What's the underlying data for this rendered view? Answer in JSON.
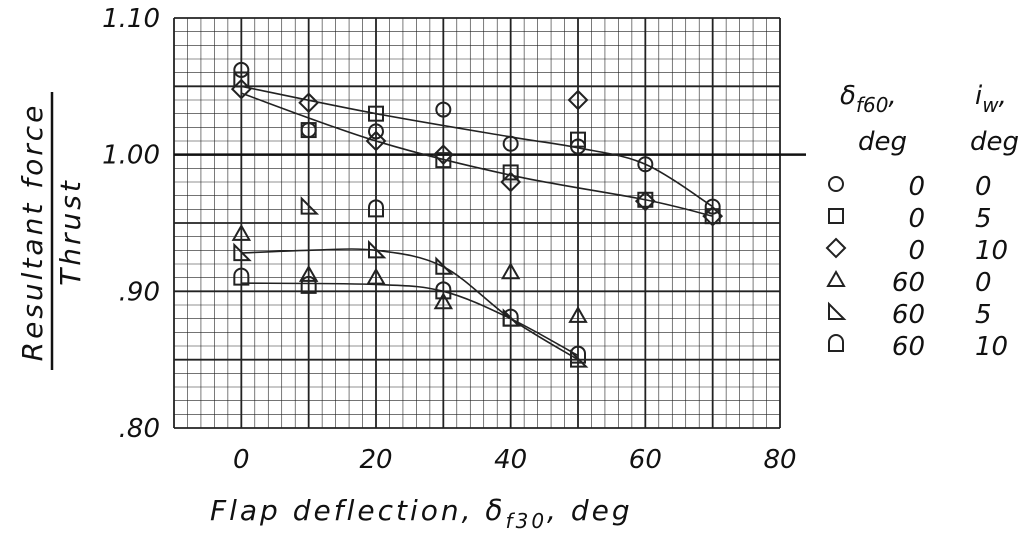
{
  "chart_data": {
    "type": "scatter",
    "xlabel": "Flap deflection, δ",
    "xlabel_sub": "f30",
    "xlabel_suffix": ", deg",
    "ylabel_numerator": "Resultant force",
    "ylabel_denominator": "Thrust",
    "xlim": [
      -10,
      80
    ],
    "ylim": [
      0.8,
      1.1
    ],
    "x_ticks": [
      0,
      20,
      40,
      60,
      80
    ],
    "x_tick_labels": [
      "0",
      "20",
      "40",
      "60",
      "80"
    ],
    "y_ticks": [
      0.8,
      0.9,
      1.0,
      1.1
    ],
    "y_tick_labels": [
      ".80",
      ".90",
      "1.00",
      "1.10"
    ],
    "grid": true,
    "reference_line_y": 1.0,
    "legend": {
      "placement": "right",
      "header_col1_main": "δ",
      "header_col1_sub": "f60",
      "header_col1_unit": "deg",
      "header_col2_main": "i",
      "header_col2_sub": "w",
      "header_col2_unit": "deg",
      "entries": [
        {
          "symbol": "circle",
          "col1": "0",
          "col2": "0"
        },
        {
          "symbol": "square",
          "col1": "0",
          "col2": "5"
        },
        {
          "symbol": "diamond",
          "col1": "0",
          "col2": "10"
        },
        {
          "symbol": "triangle",
          "col1": "60",
          "col2": "0"
        },
        {
          "symbol": "right-triangle",
          "col1": "60",
          "col2": "5"
        },
        {
          "symbol": "d-shape",
          "col1": "60",
          "col2": "10"
        }
      ]
    },
    "series": [
      {
        "symbol": "circle",
        "points": [
          [
            0,
            1.062
          ],
          [
            10,
            1.018
          ],
          [
            20,
            1.017
          ],
          [
            30,
            1.033
          ],
          [
            40,
            1.008
          ],
          [
            50,
            1.006
          ],
          [
            60,
            0.993
          ],
          [
            70,
            0.962
          ]
        ]
      },
      {
        "symbol": "square",
        "points": [
          [
            0,
            1.055
          ],
          [
            10,
            1.018
          ],
          [
            20,
            1.03
          ],
          [
            30,
            0.996
          ],
          [
            40,
            0.987
          ],
          [
            50,
            1.011
          ],
          [
            60,
            0.967
          ],
          [
            70,
            0.955
          ]
        ]
      },
      {
        "symbol": "diamond",
        "points": [
          [
            0,
            1.048
          ],
          [
            10,
            1.038
          ],
          [
            20,
            1.01
          ],
          [
            30,
            1.0
          ],
          [
            40,
            0.98
          ],
          [
            50,
            1.04
          ],
          [
            60,
            0.966
          ],
          [
            70,
            0.955
          ]
        ]
      },
      {
        "symbol": "triangle",
        "points": [
          [
            0,
            0.942
          ],
          [
            10,
            0.912
          ],
          [
            20,
            0.91
          ],
          [
            30,
            0.892
          ],
          [
            40,
            0.914
          ],
          [
            50,
            0.882
          ],
          [
            60,
            null
          ],
          [
            70,
            null
          ]
        ]
      },
      {
        "symbol": "right-triangle",
        "points": [
          [
            0,
            0.928
          ],
          [
            10,
            0.962
          ],
          [
            20,
            0.93
          ],
          [
            30,
            0.918
          ],
          [
            40,
            0.88
          ],
          [
            50,
            0.85
          ]
        ]
      },
      {
        "symbol": "d-shape",
        "points": [
          [
            0,
            0.91
          ],
          [
            10,
            0.904
          ],
          [
            20,
            0.96
          ],
          [
            30,
            0.9
          ],
          [
            40,
            0.88
          ],
          [
            50,
            0.853
          ]
        ]
      }
    ],
    "curves": [
      {
        "points": [
          [
            0,
            1.05
          ],
          [
            20,
            1.03
          ],
          [
            40,
            1.013
          ],
          [
            50,
            1.005
          ],
          [
            60,
            0.993
          ],
          [
            70,
            0.962
          ]
        ]
      },
      {
        "points": [
          [
            0,
            1.045
          ],
          [
            20,
            1.01
          ],
          [
            40,
            0.985
          ],
          [
            60,
            0.967
          ],
          [
            70,
            0.955
          ]
        ]
      },
      {
        "points": [
          [
            0,
            0.928
          ],
          [
            10,
            0.93
          ],
          [
            20,
            0.93
          ],
          [
            30,
            0.918
          ],
          [
            40,
            0.88
          ],
          [
            50,
            0.85
          ]
        ]
      },
      {
        "points": [
          [
            0,
            0.906
          ],
          [
            20,
            0.905
          ],
          [
            30,
            0.9
          ],
          [
            40,
            0.88
          ],
          [
            50,
            0.853
          ]
        ]
      }
    ]
  }
}
